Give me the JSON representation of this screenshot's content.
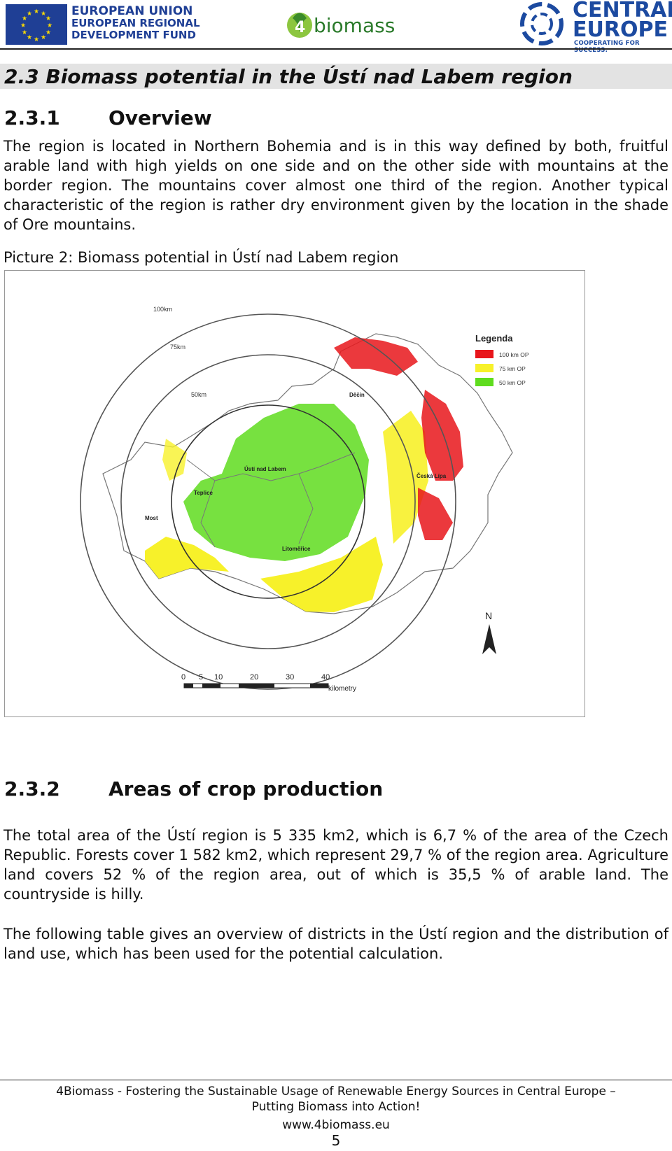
{
  "header": {
    "eu_lines": [
      "EUROPEAN UNION",
      "EUROPEAN REGIONAL",
      "DEVELOPMENT FUND"
    ],
    "biomass_logo": "biomass",
    "ce_line1": "CENTRAL",
    "ce_line2": "EUROPE",
    "ce_tagline": "COOPERATING FOR SUCCESS."
  },
  "section": {
    "heading": "2.3 Biomass potential in the Ústí nad Labem region",
    "sub1_num": "2.3.1",
    "sub1_title": "Overview",
    "overview_paragraph": "The region is located in Northern Bohemia and is in this way defined by both, fruitful arable land with high yields on one side and on the other side with mountains at the border region. The mountains cover almost one third of the region. Another typical characteristic of the region is rather dry environment given by the location in the shade of Ore mountains.",
    "picture_caption": "Picture 2: Biomass potential in Ústí nad Labem region",
    "sub2_num": "2.3.2",
    "sub2_title": "Areas of crop production",
    "crop_paragraph1": "The total area of the Ústí region is 5 335 km2, which is 6,7 % of the area of the Czech Republic. Forests cover 1 582 km2, which represent 29,7 % of the region area. Agriculture land covers 52 % of the region area, out of which is 35,5 % of arable land. The countryside is hilly.",
    "crop_paragraph2": "The following table gives an overview of districts in the Ústí region and the distribution of land use, which has been used for the potential calculation."
  },
  "map": {
    "legend_title": "Legenda",
    "legend_items": [
      {
        "label": "100 km OP",
        "color": "#e8161b"
      },
      {
        "label": "75 km OP",
        "color": "#f7f12a"
      },
      {
        "label": "50 km OP",
        "color": "#5fdc1e"
      }
    ],
    "ring_labels": [
      "100km",
      "75km",
      "50km"
    ],
    "towns": [
      "Děčín",
      "Ústí nad Labem",
      "Teplice",
      "Most",
      "Česká Lípa",
      "Litoměřice"
    ],
    "north": "N",
    "scale_ticks": [
      "0",
      "5",
      "10",
      "20",
      "30",
      "40"
    ],
    "scale_unit": "kilometry"
  },
  "footer": {
    "line1": "4Biomass - Fostering the Sustainable Usage of Renewable Energy Sources in Central Europe –",
    "line2": "Putting Biomass into Action!",
    "url": "www.4biomass.eu",
    "page": "5"
  }
}
